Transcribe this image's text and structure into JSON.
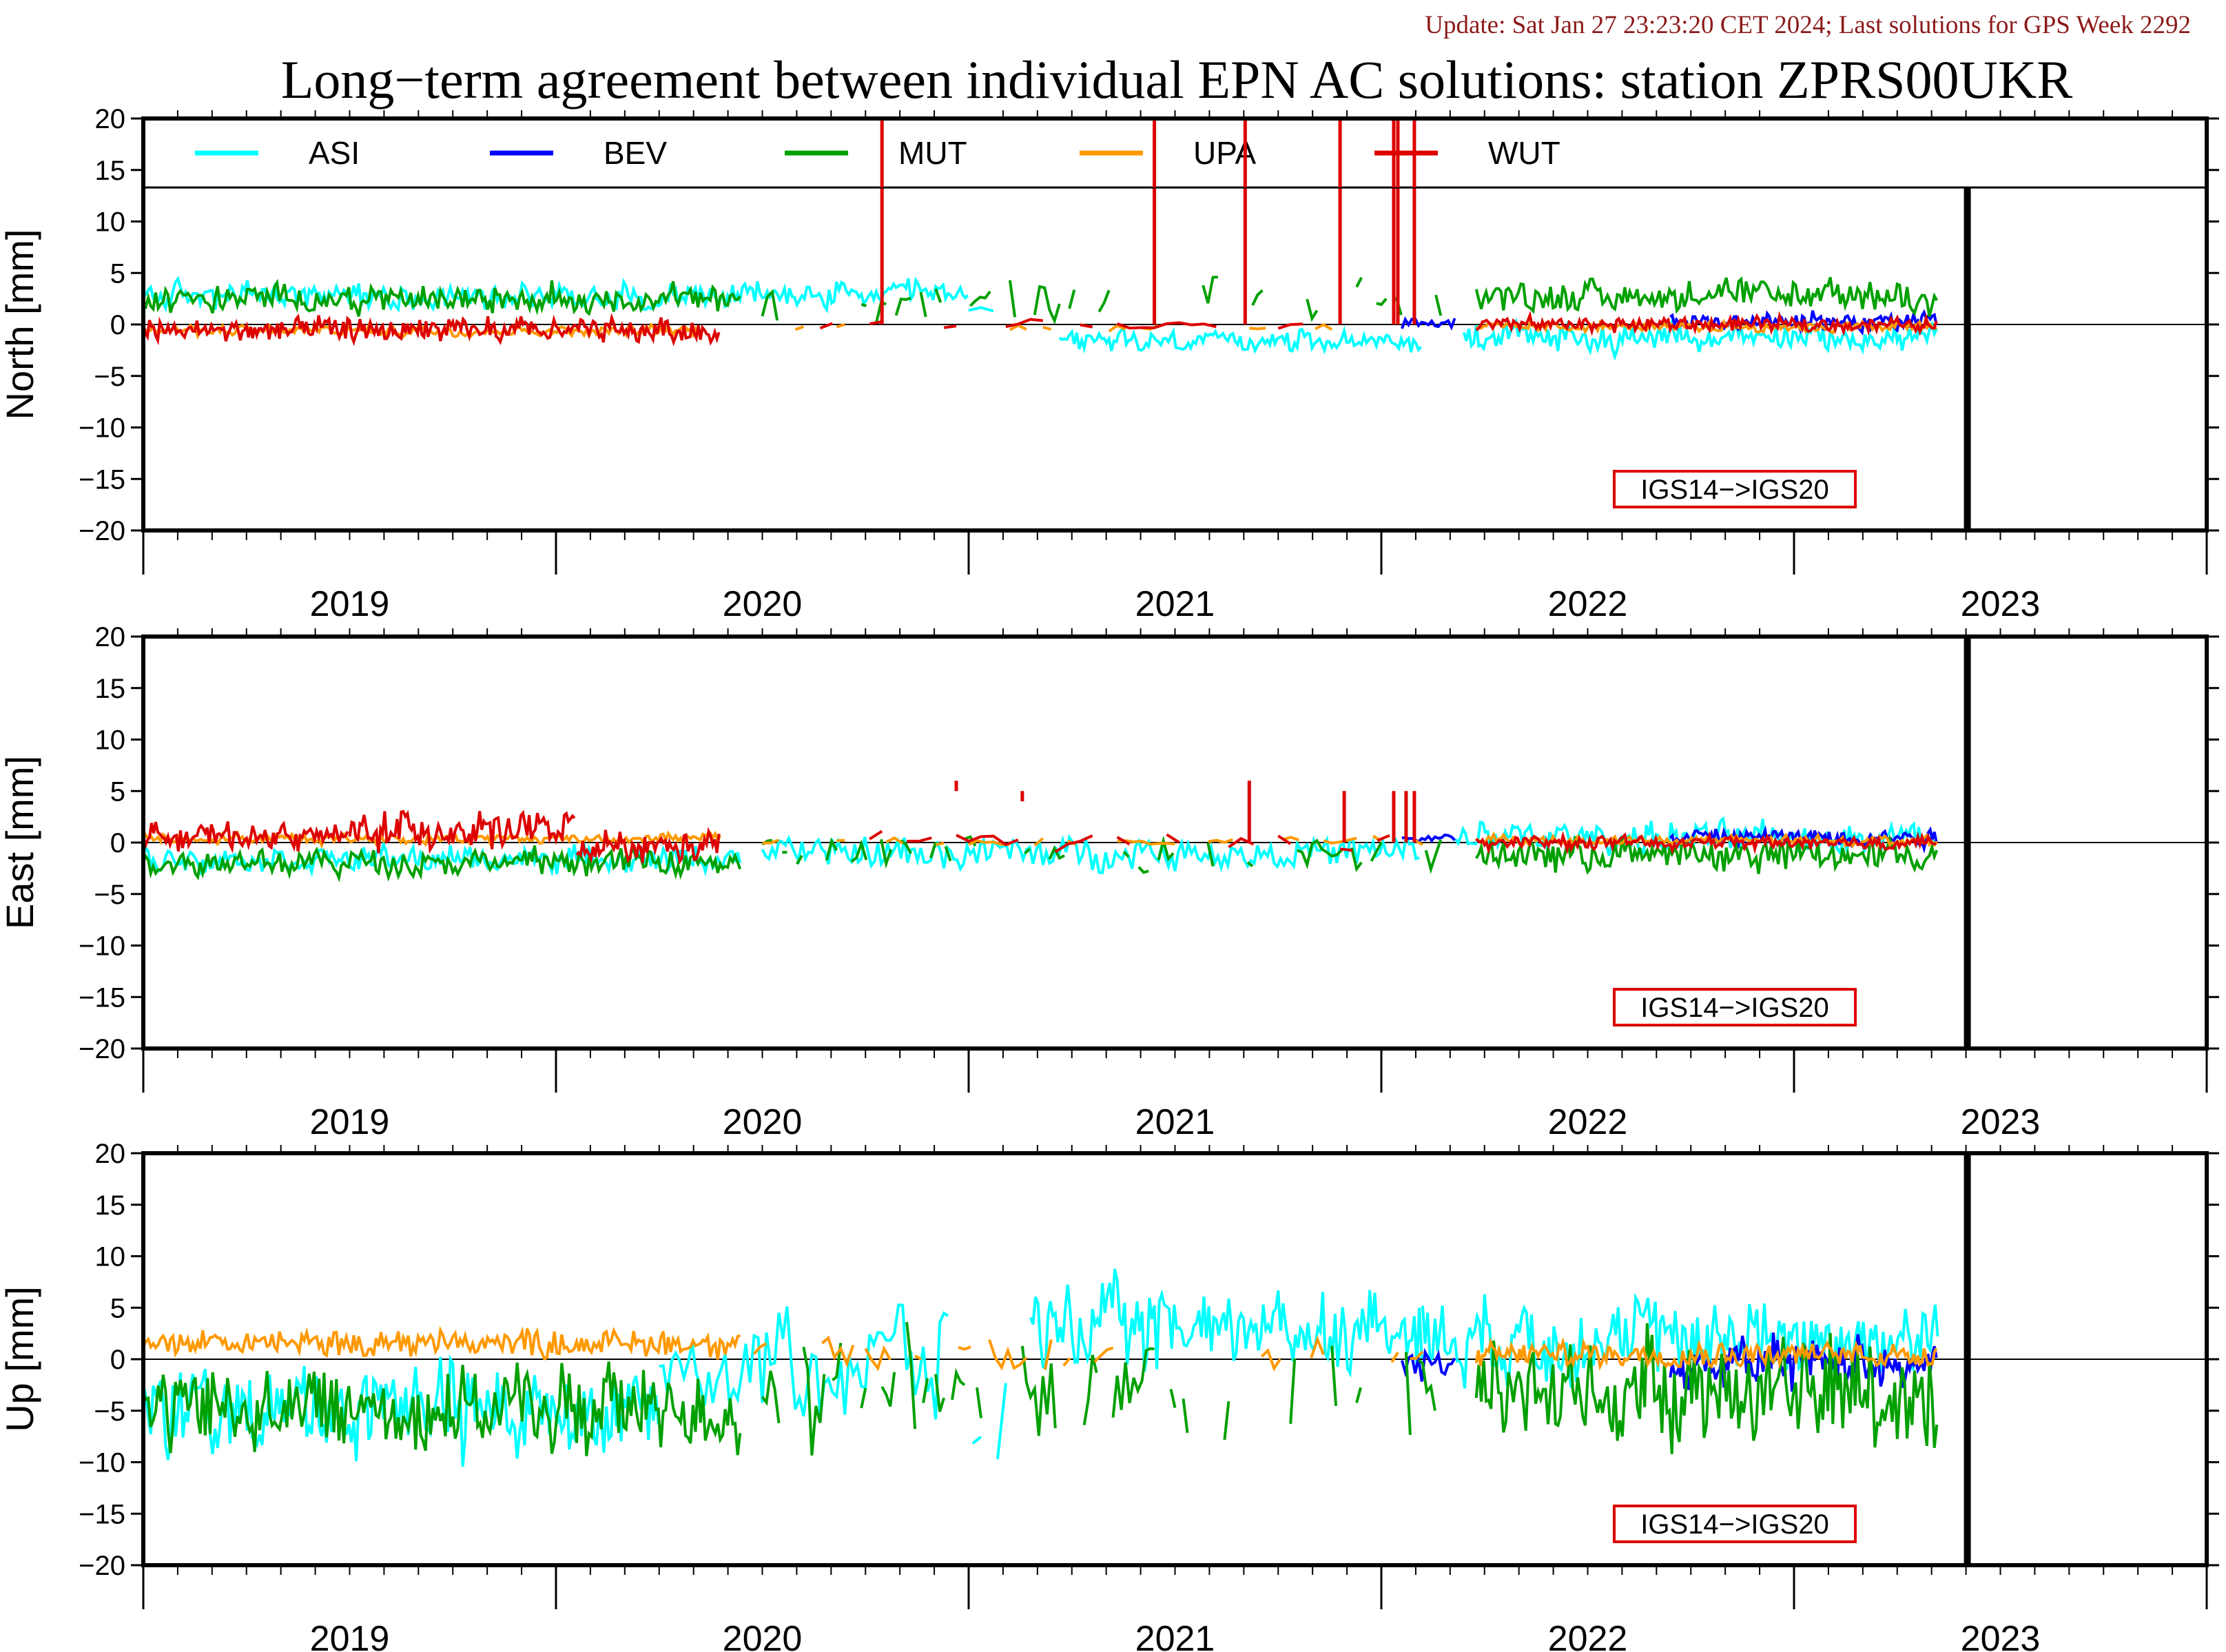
{
  "update_text": "Update: Sat Jan 27 23:23:20 CET 2024; Last solutions for GPS Week 2292",
  "chart_data": {
    "type": "line",
    "title": "Long−term agreement between individual EPN AC solutions: station ZPRS00UKR",
    "x_range": [
      2018.5,
      2023.5
    ],
    "x_tick_labels": [
      "2019",
      "2020",
      "2021",
      "2022",
      "2023"
    ],
    "frame_change": {
      "label": "IGS14−>IGS20",
      "x": 2022.92
    },
    "colors": {
      "ASI": "#00ffff",
      "BEV": "#0000ff",
      "MUT": "#00a000",
      "UPA": "#ff9900",
      "WUT": "#dd0000"
    },
    "series_names": [
      "ASI",
      "BEV",
      "MUT",
      "UPA",
      "WUT"
    ],
    "panels": [
      {
        "ylabel": "North [mm]",
        "ylim": [
          -20,
          20
        ],
        "y_tick_labels": [
          "20",
          "15",
          "10",
          "5",
          "0",
          "−5",
          "−10",
          "−15",
          "−20"
        ],
        "show_legend": true,
        "series": [
          {
            "name": "ASI",
            "segments": [
              {
                "from": 2018.5,
                "to": 2020.5,
                "mean": 2.8,
                "amp": 1.3,
                "step": 0.006
              },
              {
                "from": 2020.5,
                "to": 2020.62,
                "mean": 2.0,
                "amp": 1.5,
                "step": 0.03,
                "sparse": true
              },
              {
                "from": 2020.72,
                "to": 2021.6,
                "mean": -1.6,
                "amp": 1.1,
                "step": 0.006
              },
              {
                "from": 2021.7,
                "to": 2022.85,
                "mean": -1.3,
                "amp": 1.4,
                "step": 0.006
              }
            ]
          },
          {
            "name": "BEV",
            "segments": [
              {
                "from": 2021.55,
                "to": 2021.68,
                "mean": 0.0,
                "amp": 0.6,
                "step": 0.008
              },
              {
                "from": 2022.2,
                "to": 2022.85,
                "mean": 0.3,
                "amp": 0.9,
                "step": 0.005
              }
            ]
          },
          {
            "name": "MUT",
            "segments": [
              {
                "from": 2018.5,
                "to": 2019.95,
                "mean": 2.5,
                "amp": 1.4,
                "step": 0.006
              },
              {
                "from": 2020.0,
                "to": 2021.65,
                "mean": 2.0,
                "amp": 2.2,
                "step": 0.012,
                "sparse": true
              },
              {
                "from": 2021.73,
                "to": 2022.85,
                "mean": 2.8,
                "amp": 1.5,
                "step": 0.006
              }
            ]
          },
          {
            "name": "UPA",
            "segments": [
              {
                "from": 2018.5,
                "to": 2019.85,
                "mean": -0.6,
                "amp": 0.5,
                "step": 0.006
              },
              {
                "from": 2019.9,
                "to": 2021.6,
                "mean": -0.2,
                "amp": 0.4,
                "step": 0.02,
                "sparse": true
              },
              {
                "from": 2021.73,
                "to": 2022.85,
                "mean": -0.2,
                "amp": 0.5,
                "step": 0.006
              }
            ]
          },
          {
            "name": "WUT",
            "segments": [
              {
                "from": 2018.5,
                "to": 2019.9,
                "mean": -0.6,
                "amp": 1.2,
                "step": 0.005
              },
              {
                "from": 2019.9,
                "to": 2021.6,
                "mean": 0.0,
                "amp": 0.5,
                "step": 0.03,
                "sparse": true
              },
              {
                "from": 2021.73,
                "to": 2022.85,
                "mean": 0.0,
                "amp": 0.7,
                "step": 0.005
              }
            ]
          }
        ],
        "spikes": [
          {
            "name": "WUT",
            "x": 2020.29,
            "y1": 0,
            "y2": 20
          },
          {
            "name": "WUT",
            "x": 2020.95,
            "y1": 0,
            "y2": 20
          },
          {
            "name": "WUT",
            "x": 2021.17,
            "y1": 0,
            "y2": 20
          },
          {
            "name": "WUT",
            "x": 2021.4,
            "y1": 0,
            "y2": 20
          },
          {
            "name": "WUT",
            "x": 2021.53,
            "y1": 0,
            "y2": 20
          },
          {
            "name": "WUT",
            "x": 2021.54,
            "y1": 0,
            "y2": 20
          },
          {
            "name": "WUT",
            "x": 2021.58,
            "y1": 0,
            "y2": 20
          }
        ]
      },
      {
        "ylabel": "East [mm]",
        "ylim": [
          -20,
          20
        ],
        "y_tick_labels": [
          "20",
          "15",
          "10",
          "5",
          "0",
          "−5",
          "−10",
          "−15",
          "−20"
        ],
        "show_legend": false,
        "series": [
          {
            "name": "ASI",
            "segments": [
              {
                "from": 2018.5,
                "to": 2019.95,
                "mean": -1.6,
                "amp": 1.2,
                "step": 0.006
              },
              {
                "from": 2020.0,
                "to": 2021.6,
                "mean": -1.0,
                "amp": 1.6,
                "step": 0.008
              },
              {
                "from": 2021.68,
                "to": 2022.85,
                "mean": 0.5,
                "amp": 1.6,
                "step": 0.006
              }
            ]
          },
          {
            "name": "BEV",
            "segments": [
              {
                "from": 2021.55,
                "to": 2021.68,
                "mean": 0.4,
                "amp": 0.5,
                "step": 0.008
              },
              {
                "from": 2022.2,
                "to": 2022.85,
                "mean": 0.5,
                "amp": 0.9,
                "step": 0.005
              }
            ]
          },
          {
            "name": "MUT",
            "segments": [
              {
                "from": 2018.5,
                "to": 2019.95,
                "mean": -1.9,
                "amp": 1.3,
                "step": 0.006
              },
              {
                "from": 2020.0,
                "to": 2021.65,
                "mean": -1.0,
                "amp": 1.8,
                "step": 0.012,
                "sparse": true
              },
              {
                "from": 2021.73,
                "to": 2022.85,
                "mean": -1.2,
                "amp": 1.7,
                "step": 0.006
              }
            ]
          },
          {
            "name": "UPA",
            "segments": [
              {
                "from": 2018.5,
                "to": 2019.9,
                "mean": 0.4,
                "amp": 0.5,
                "step": 0.006
              },
              {
                "from": 2019.9,
                "to": 2021.6,
                "mean": 0.1,
                "amp": 0.4,
                "step": 0.02,
                "sparse": true
              },
              {
                "from": 2021.73,
                "to": 2022.85,
                "mean": 0.2,
                "amp": 0.5,
                "step": 0.006
              }
            ]
          },
          {
            "name": "WUT",
            "segments": [
              {
                "from": 2018.5,
                "to": 2019.0,
                "mean": 0.6,
                "amp": 1.2,
                "step": 0.005
              },
              {
                "from": 2019.0,
                "to": 2019.55,
                "mean": 1.2,
                "amp": 1.8,
                "step": 0.005
              },
              {
                "from": 2019.55,
                "to": 2019.9,
                "mean": -0.5,
                "amp": 1.5,
                "step": 0.005
              },
              {
                "from": 2019.9,
                "to": 2021.6,
                "mean": 0.2,
                "amp": 1.0,
                "step": 0.03,
                "sparse": true
              },
              {
                "from": 2021.73,
                "to": 2022.85,
                "mean": 0.0,
                "amp": 0.6,
                "step": 0.005
              }
            ]
          }
        ],
        "spikes": [
          {
            "name": "WUT",
            "x": 2020.47,
            "y1": 5,
            "y2": 6
          },
          {
            "name": "WUT",
            "x": 2020.63,
            "y1": 4,
            "y2": 5
          },
          {
            "name": "WUT",
            "x": 2021.18,
            "y1": 0,
            "y2": 6
          },
          {
            "name": "WUT",
            "x": 2021.41,
            "y1": 0,
            "y2": 5
          },
          {
            "name": "WUT",
            "x": 2021.53,
            "y1": 0,
            "y2": 5
          },
          {
            "name": "WUT",
            "x": 2021.56,
            "y1": 0,
            "y2": 5
          },
          {
            "name": "WUT",
            "x": 2021.58,
            "y1": 0,
            "y2": 5
          }
        ]
      },
      {
        "ylabel": "Up [mm]",
        "ylim": [
          -20,
          20
        ],
        "y_tick_labels": [
          "20",
          "15",
          "10",
          "5",
          "0",
          "−5",
          "−10",
          "−15",
          "−20"
        ],
        "show_legend": false,
        "series": [
          {
            "name": "ASI",
            "segments": [
              {
                "from": 2018.5,
                "to": 2019.75,
                "mean": -5.0,
                "amp": 4.5,
                "step": 0.006
              },
              {
                "from": 2019.75,
                "to": 2020.45,
                "mean": 0.0,
                "amp": 5.5,
                "step": 0.01
              },
              {
                "from": 2020.45,
                "to": 2020.65,
                "mean": -6.0,
                "amp": 6.0,
                "step": 0.02,
                "sparse": true
              },
              {
                "from": 2020.65,
                "to": 2021.6,
                "mean": 3.0,
                "amp": 4.0,
                "step": 0.006
              },
              {
                "from": 2021.6,
                "to": 2022.85,
                "mean": 2.0,
                "amp": 4.0,
                "step": 0.006
              }
            ]
          },
          {
            "name": "BEV",
            "segments": [
              {
                "from": 2021.55,
                "to": 2021.68,
                "mean": -0.5,
                "amp": 1.8,
                "step": 0.008
              },
              {
                "from": 2022.2,
                "to": 2022.85,
                "mean": -0.3,
                "amp": 2.5,
                "step": 0.005
              }
            ]
          },
          {
            "name": "MUT",
            "segments": [
              {
                "from": 2018.5,
                "to": 2019.95,
                "mean": -4.8,
                "amp": 4.2,
                "step": 0.006
              },
              {
                "from": 2020.0,
                "to": 2021.65,
                "mean": -3.5,
                "amp": 5.5,
                "step": 0.01,
                "sparse": true
              },
              {
                "from": 2021.73,
                "to": 2022.85,
                "mean": -3.0,
                "amp": 5.5,
                "step": 0.006
              }
            ]
          },
          {
            "name": "UPA",
            "segments": [
              {
                "from": 2018.5,
                "to": 2019.95,
                "mean": 1.6,
                "amp": 1.4,
                "step": 0.006
              },
              {
                "from": 2019.95,
                "to": 2021.65,
                "mean": 0.5,
                "amp": 1.6,
                "step": 0.015,
                "sparse": true
              },
              {
                "from": 2021.73,
                "to": 2022.85,
                "mean": 0.5,
                "amp": 1.2,
                "step": 0.005
              }
            ]
          },
          {
            "name": "WUT",
            "segments": []
          }
        ],
        "spikes": []
      }
    ]
  }
}
